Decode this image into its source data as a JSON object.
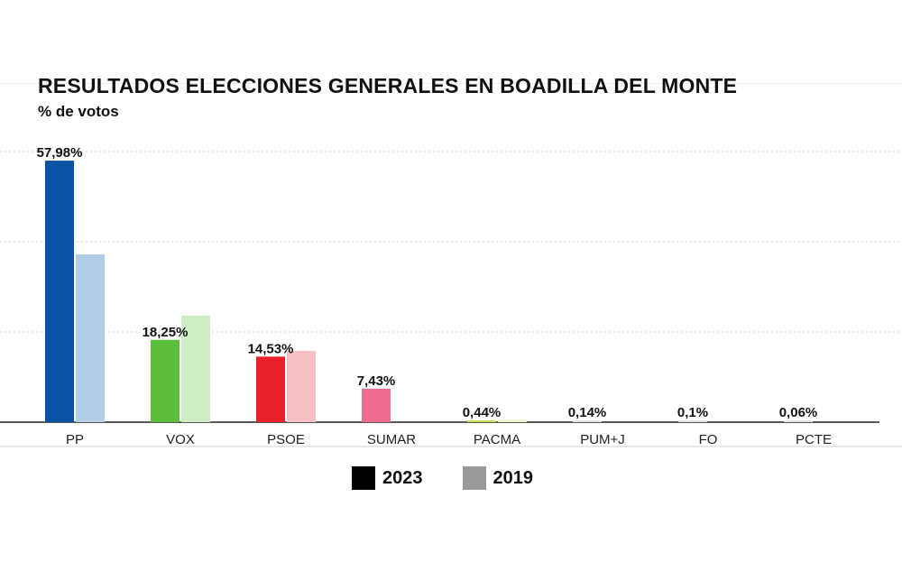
{
  "chart_data": {
    "type": "bar",
    "title": "RESULTADOS ELECCIONES GENERALES EN BOADILLA DEL MONTE",
    "subtitle": "% de votos",
    "categories": [
      "PP",
      "VOX",
      "PSOE",
      "SUMAR",
      "PACMA",
      "PUM+J",
      "FO",
      "PCTE"
    ],
    "series": [
      {
        "name": "2023",
        "values": [
          57.98,
          18.25,
          14.53,
          7.43,
          0.44,
          0.14,
          0.1,
          0.06
        ],
        "labels": [
          "57,98%",
          "18,25%",
          "14,53%",
          "7,43%",
          "0,44%",
          "0,14%",
          "0,1%",
          "0,06%"
        ],
        "colors": [
          "#0a52a3",
          "#5bbf3c",
          "#e8202a",
          "#ee6d8f",
          "#c7e06a",
          "#e4e4e4",
          "#e4e4e4",
          "#e4e4e4"
        ]
      },
      {
        "name": "2019",
        "values": [
          37.2,
          23.6,
          15.8,
          null,
          0.6,
          null,
          null,
          null
        ],
        "colors": [
          "#b3cde6",
          "#cdeec4",
          "#f7bfc3",
          null,
          "#eef6cf",
          null,
          null,
          null
        ]
      }
    ],
    "ylim": [
      0,
      60
    ],
    "grid": true,
    "gridlines": [
      20,
      40,
      60
    ],
    "legend_position": "bottom-center",
    "legend_colors": {
      "2023": "#000000",
      "2019": "#999999"
    }
  }
}
